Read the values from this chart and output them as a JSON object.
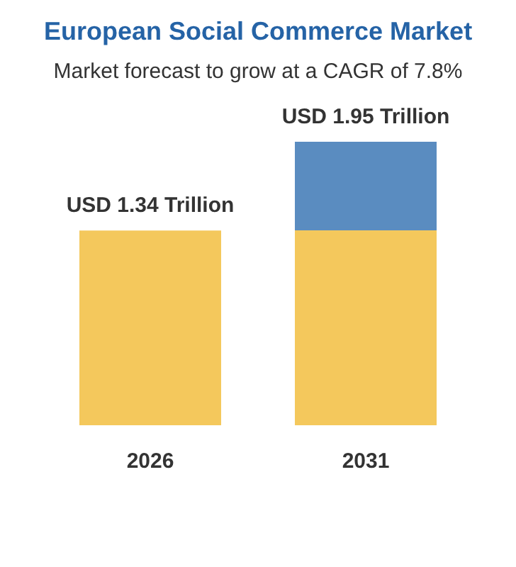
{
  "chart_data": {
    "type": "bar",
    "title": "European Social Commerce Market",
    "subtitle": "Market forecast to grow at a CAGR of 7.8%",
    "categories": [
      "2026",
      "2031"
    ],
    "values": [
      1.34,
      1.95
    ],
    "colors": [
      "#f4c85c",
      "#5a8cc0"
    ],
    "value_labels": [
      "USD 1.34 Trillion",
      "USD 1.95 Trillion"
    ]
  }
}
